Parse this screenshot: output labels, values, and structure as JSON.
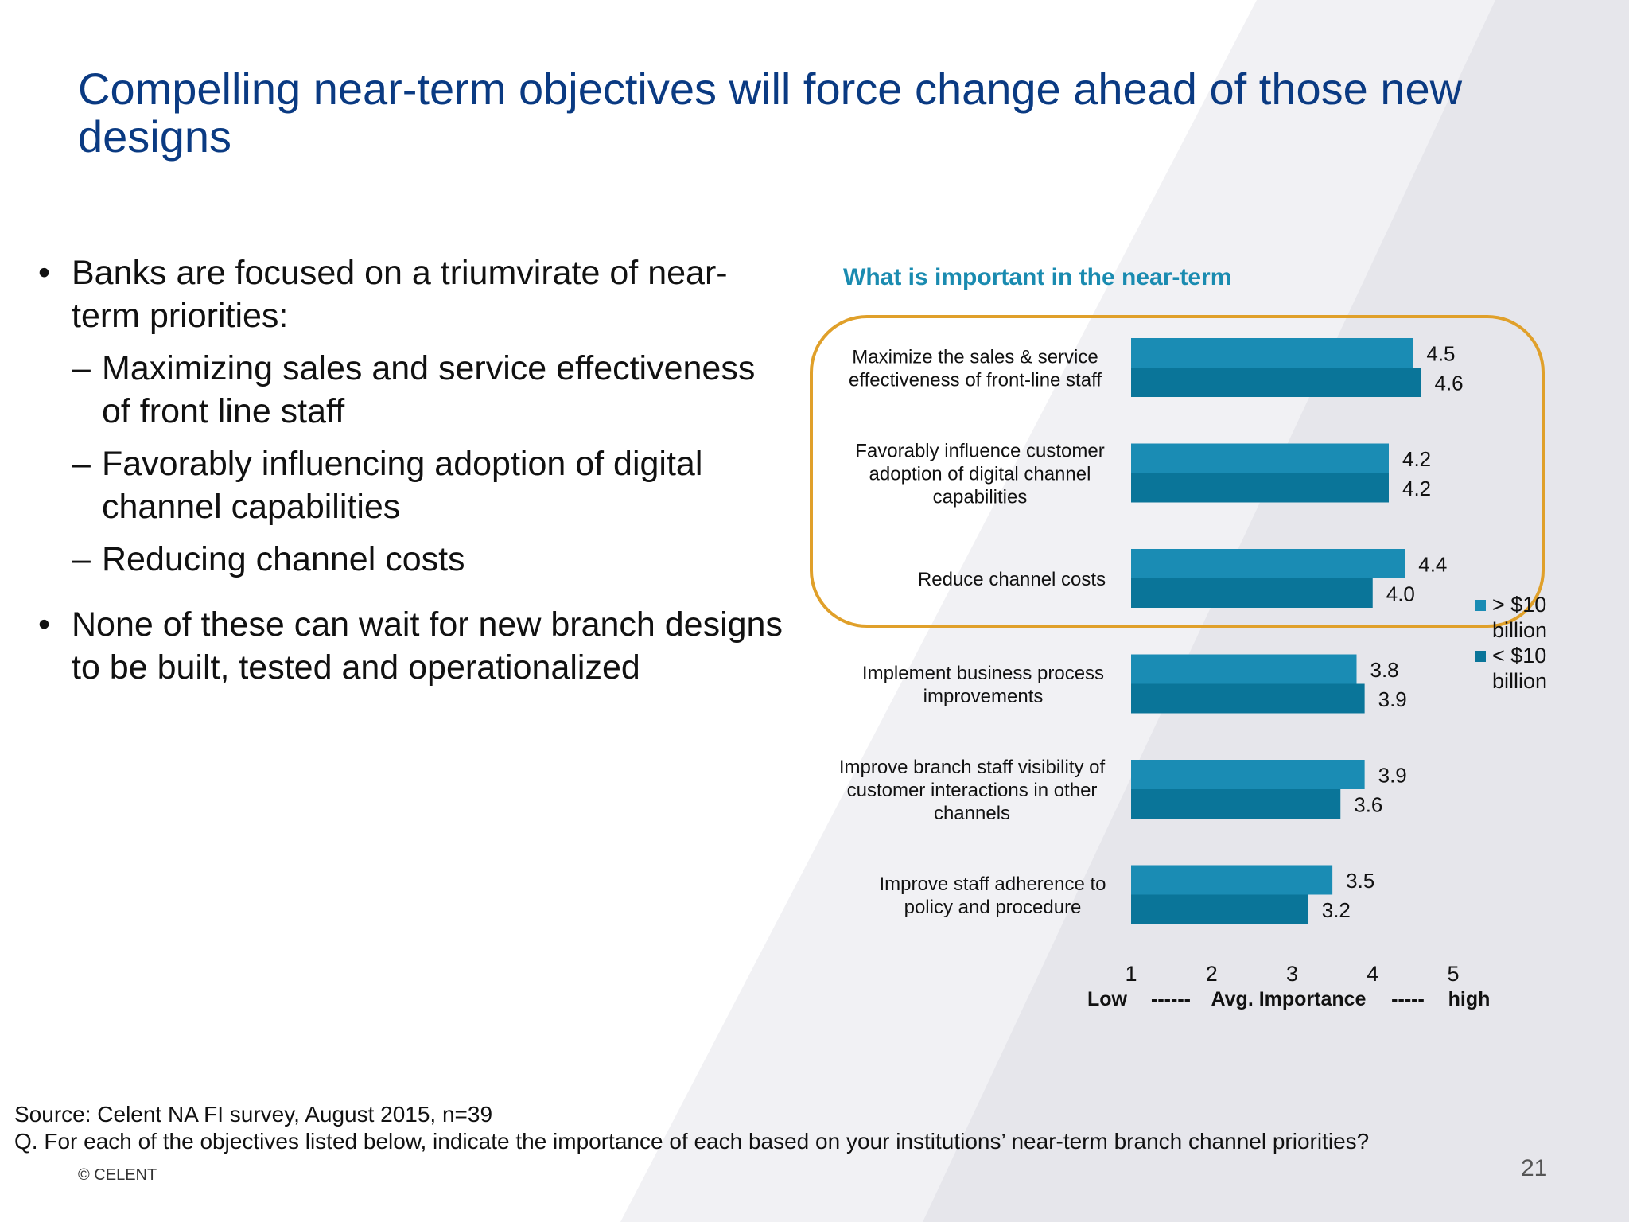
{
  "slide": {
    "title": "Compelling near-term objectives will force change ahead of those new designs",
    "bullets": [
      {
        "text": "Banks are focused on a triumvirate of near-term priorities:"
      },
      {
        "sub": "Maximizing sales and service effectiveness of front line staff"
      },
      {
        "sub": "Favorably influencing adoption of digital channel capabilities"
      },
      {
        "sub": "Reducing channel costs"
      },
      {
        "text": "None of these can wait for new branch designs to be built, tested and operationalized"
      }
    ],
    "bullet_glyph": "•",
    "dash_glyph": "–",
    "source": "Source: Celent NA FI survey, August 2015, n=39",
    "question": "Q. For each of the objectives listed below, indicate the importance of each based on your institutions’ near-term branch channel priorities?",
    "copyright": "© CELENT",
    "page_number": "21"
  },
  "chart_data": {
    "type": "bar",
    "orientation": "horizontal",
    "title": "What is important in the near-term",
    "categories": [
      "Maximize the sales & service effectiveness of front-line staff",
      "Favorably influence customer adoption of digital channel capabilities",
      "Reduce channel costs",
      "Implement business process improvements",
      "Improve branch staff visibility of customer interactions in other channels",
      "Improve staff adherence to policy and procedure"
    ],
    "series": [
      {
        "name": "> $10 billion",
        "values": [
          4.5,
          4.2,
          4.4,
          3.8,
          3.9,
          3.5
        ],
        "color": "#1a8cb4"
      },
      {
        "name": "< $10 billion",
        "values": [
          4.6,
          4.2,
          4.0,
          3.9,
          3.6,
          3.2
        ],
        "color": "#0a7599"
      }
    ],
    "xlim": [
      1,
      5
    ],
    "xticks": [
      "1",
      "2",
      "3",
      "4",
      "5"
    ],
    "xlabel_parts": [
      "Low",
      "------",
      "Avg. Importance",
      "-----",
      "high"
    ],
    "highlight_color": "#e0a02a",
    "highlighted_categories": 3,
    "legend_position": "right"
  }
}
